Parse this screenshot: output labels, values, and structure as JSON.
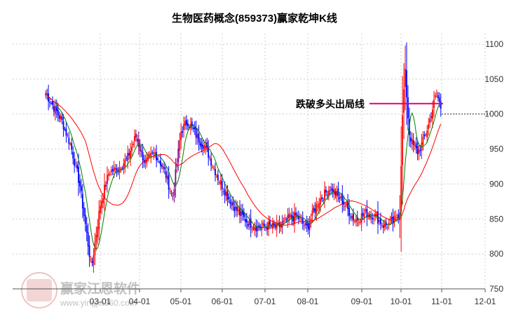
{
  "chart_data": {
    "type": "candlestick",
    "title": "生物医药概念(859373)赢家乾坤K线",
    "xlabel": "",
    "ylabel": "",
    "ylim": [
      750,
      1115
    ],
    "y_ticks": [
      750,
      800,
      850,
      900,
      950,
      1000,
      1050,
      1100
    ],
    "x_ticks": [
      "03-01",
      "04-01",
      "05-01",
      "06-01",
      "07-01",
      "08-01",
      "09-01",
      "10-01",
      "11-01",
      "12-01"
    ],
    "grid": true,
    "annotation": {
      "text": "跌破多头出局线",
      "value": 1015
    },
    "reference_line": {
      "value": 1000
    },
    "candle_colors": {
      "up": "#ff0000",
      "down": "#0000ff",
      "neutral": "#800080"
    },
    "ma_colors": {
      "short": "#008000",
      "long": "#ff0000"
    },
    "watermark": {
      "brand": "赢家江恩软件",
      "url": "www.yingjia360.com",
      "seal_text": "赢家江恩"
    },
    "anchor_series": {
      "name": "",
      "points": [
        [
          "01-24",
          1030
        ],
        [
          "02-04",
          990
        ],
        [
          "02-10",
          955
        ],
        [
          "02-16",
          900
        ],
        [
          "02-24",
          780
        ],
        [
          "03-01",
          870
        ],
        [
          "03-08",
          918
        ],
        [
          "03-15",
          922
        ],
        [
          "03-22",
          935
        ],
        [
          "03-29",
          968
        ],
        [
          "04-05",
          930
        ],
        [
          "04-12",
          945
        ],
        [
          "04-19",
          920
        ],
        [
          "04-25",
          880
        ],
        [
          "05-01",
          975
        ],
        [
          "05-06",
          990
        ],
        [
          "05-13",
          968
        ],
        [
          "05-20",
          950
        ],
        [
          "05-29",
          908
        ],
        [
          "06-05",
          882
        ],
        [
          "06-12",
          860
        ],
        [
          "06-19",
          845
        ],
        [
          "06-26",
          838
        ],
        [
          "07-03",
          840
        ],
        [
          "07-10",
          838
        ],
        [
          "07-17",
          848
        ],
        [
          "07-24",
          855
        ],
        [
          "07-31",
          836
        ],
        [
          "08-07",
          875
        ],
        [
          "08-14",
          895
        ],
        [
          "08-21",
          875
        ],
        [
          "08-28",
          848
        ],
        [
          "09-04",
          858
        ],
        [
          "09-11",
          855
        ],
        [
          "09-18",
          840
        ],
        [
          "09-25",
          845
        ],
        [
          "09-30",
          860
        ],
        [
          "10-02",
          990
        ],
        [
          "10-04",
          1065
        ],
        [
          "10-07",
          975
        ],
        [
          "10-10",
          955
        ],
        [
          "10-14",
          945
        ],
        [
          "10-18",
          962
        ],
        [
          "10-22",
          985
        ],
        [
          "10-28",
          1030
        ],
        [
          "11-01",
          1005
        ]
      ]
    }
  }
}
